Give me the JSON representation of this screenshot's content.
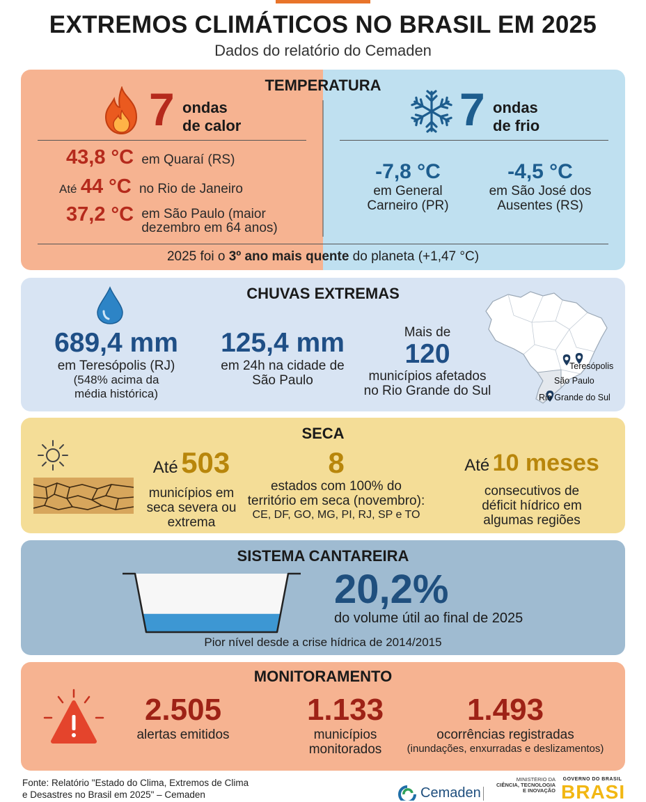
{
  "header": {
    "title": "EXTREMOS CLIMÁTICOS NO BRASIL EM 2025",
    "subtitle": "Dados do relatório do Cemaden"
  },
  "temperatura": {
    "title": "TEMPERATURA",
    "heat": {
      "count": "7",
      "label_line1": "ondas",
      "label_line2": "de calor",
      "records": [
        {
          "prefix": "",
          "value": "43,8 °C",
          "desc": "em Quaraí (RS)"
        },
        {
          "prefix": "Até",
          "value": "44 °C",
          "desc": "no Rio de Janeiro"
        },
        {
          "prefix": "",
          "value": "37,2 °C",
          "desc": "em São Paulo (maior",
          "desc2": "dezembro em 64 anos)"
        }
      ]
    },
    "cold": {
      "count": "7",
      "label_line1": "ondas",
      "label_line2": "de frio",
      "records": [
        {
          "value": "-7,8 °C",
          "desc1": "em General",
          "desc2": "Carneiro (PR)"
        },
        {
          "value": "-4,5 °C",
          "desc1": "em São José dos",
          "desc2": "Ausentes (RS)"
        }
      ]
    },
    "footer_pre": "2025 foi o ",
    "footer_bold": "3º ano mais quente",
    "footer_post": " do planeta (+1,47 °C)"
  },
  "chuvas": {
    "title": "CHUVAS EXTREMAS",
    "stat1": {
      "value": "689,4 mm",
      "line1": "em Teresópolis (RJ)",
      "line2": "(548% acima da",
      "line3": "média histórica)"
    },
    "stat2": {
      "value": "125,4 mm",
      "line1": "em 24h na cidade de",
      "line2": "São Paulo"
    },
    "stat3": {
      "pre": "Mais de",
      "value": "120",
      "line1": "municípios afetados",
      "line2": "no Rio Grande do Sul"
    },
    "map_labels": [
      "Teresópolis",
      "São Paulo",
      "Rio Grande do Sul"
    ]
  },
  "seca": {
    "title": "SECA",
    "stat1": {
      "pre": "Até",
      "value": "503",
      "line1": "municípios em",
      "line2": "seca severa ou",
      "line3": "extrema"
    },
    "stat2": {
      "value": "8",
      "line1": "estados com 100% do",
      "line2": "território em seca (novembro):",
      "line3": "CE, DF, GO, MG, PI, RJ, SP e TO"
    },
    "stat3": {
      "pre": "Até",
      "value": "10 meses",
      "line1": "consecutivos de",
      "line2": "déficit hídrico em",
      "line3": "algumas regiões"
    }
  },
  "cantareira": {
    "title": "SISTEMA CANTAREIRA",
    "value": "20,2%",
    "fill_fraction": 0.202,
    "desc": "do volume útil ao final de 2025",
    "note": "Pior nível desde a crise hídrica de 2014/2015"
  },
  "monitoramento": {
    "title": "MONITORAMENTO",
    "stats": [
      {
        "value": "2.505",
        "line1": "alertas emitidos",
        "line2": ""
      },
      {
        "value": "1.133",
        "line1": "municípios",
        "line2": "monitorados"
      },
      {
        "value": "1.493",
        "line1": "ocorrências registradas",
        "line2": "(inundações, enxurradas e deslizamentos)"
      }
    ]
  },
  "footer": {
    "line1": "Fonte: Relatório \"Estado do Clima, Extremos de Clima",
    "line2": "e Desastres no Brasil em 2025\" – Cemaden",
    "logo_cemaden": "Cemaden",
    "ministry_line1": "MINISTÉRIO DA",
    "ministry_line2": "CIÊNCIA, TECNOLOGIA",
    "ministry_line3": "E INOVAÇÃO",
    "gov_line1": "GOVERNO DO BRASIL",
    "gov_word": "BRASIL"
  },
  "colors": {
    "hot_bg": "#f6b391",
    "cold_bg": "#bfe0f0",
    "rain_bg": "#d8e4f3",
    "seca_bg": "#f4dd97",
    "cant_bg": "#9fbbd1",
    "red": "#b52a1c",
    "blue": "#1d5d8e",
    "gold": "#b8860b"
  }
}
